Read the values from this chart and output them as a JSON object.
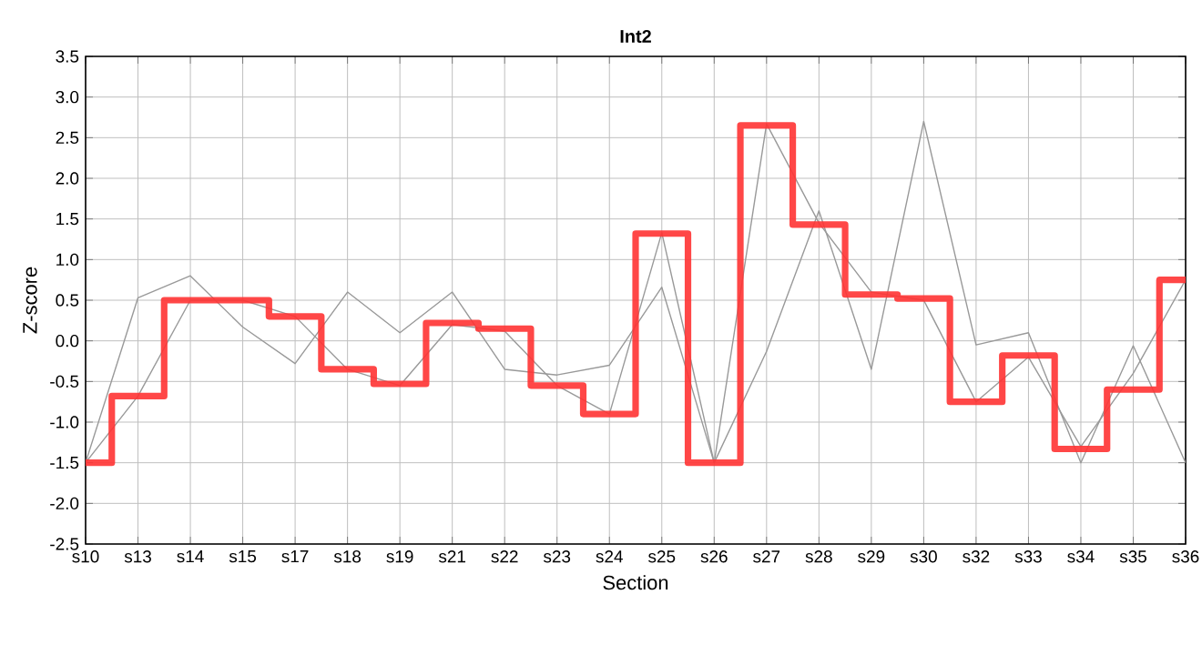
{
  "chart_data": {
    "type": "line",
    "title": "Int2",
    "xlabel": "Section",
    "ylabel": "Z-score",
    "categories": [
      "s10",
      "s13",
      "s14",
      "s15",
      "s17",
      "s18",
      "s19",
      "s21",
      "s22",
      "s23",
      "s24",
      "s25",
      "s26",
      "s27",
      "s28",
      "s29",
      "s30",
      "s32",
      "s33",
      "s34",
      "s35",
      "s36"
    ],
    "series": [
      {
        "color": "#999999",
        "values": [
          -1.5,
          0.53,
          0.8,
          0.17,
          -0.28,
          0.6,
          0.1,
          0.6,
          -0.35,
          -0.42,
          -0.3,
          0.66,
          -1.5,
          -0.13,
          1.6,
          -0.35,
          2.7,
          -0.05,
          0.1,
          -1.5,
          -0.06,
          -1.5
        ]
      },
      {
        "color": "#999999",
        "values": [
          -1.5,
          -0.68,
          0.5,
          0.5,
          0.3,
          -0.35,
          -0.55,
          0.2,
          0.12,
          -0.55,
          -0.9,
          1.33,
          -1.5,
          2.67,
          1.45,
          0.6,
          0.5,
          -0.75,
          -0.2,
          -1.3,
          -0.4,
          0.75
        ]
      },
      {
        "type": "step",
        "color": "#ff3333",
        "values": [
          -1.5,
          -0.68,
          0.5,
          0.5,
          0.3,
          -0.35,
          -0.53,
          0.22,
          0.15,
          -0.55,
          -0.9,
          1.32,
          -1.5,
          2.65,
          1.43,
          0.57,
          0.52,
          -0.75,
          -0.18,
          -1.33,
          -0.6,
          0.75
        ]
      }
    ],
    "ylim": [
      -2.5,
      3.5
    ],
    "yticks": [
      {
        "value": -2.5,
        "label": "-2.5"
      },
      {
        "value": -2,
        "label": "-2.0"
      },
      -1.5,
      {
        "value": -1,
        "label": "-1.0"
      },
      -0.5,
      {
        "value": 0,
        "label": "0.0"
      },
      0.5,
      {
        "value": 1,
        "label": "1.0"
      },
      1.5,
      {
        "value": 2,
        "label": "2.0"
      },
      2.5,
      {
        "value": 3,
        "label": "3.0"
      },
      3.5
    ],
    "grid": true,
    "marker": "none",
    "line_style": "solid"
  }
}
